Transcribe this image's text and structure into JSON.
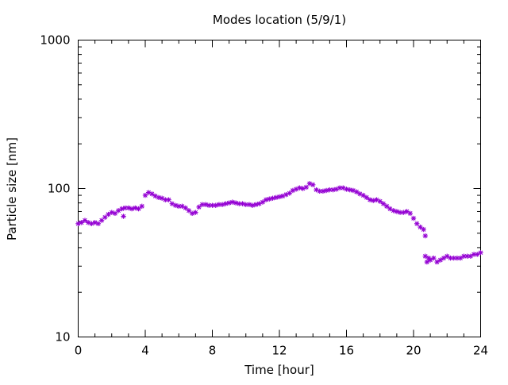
{
  "chart_data": {
    "type": "scatter",
    "title": "Modes location (5/9/1)",
    "xlabel": "Time [hour]",
    "ylabel": "Particle size [nm]",
    "xlim": [
      0,
      24
    ],
    "ylim": [
      10,
      1000
    ],
    "yscale": "log",
    "grid": false,
    "legend": "none",
    "marker": "star",
    "color": "#9400d3",
    "x_ticks": [
      0,
      4,
      8,
      12,
      16,
      20,
      24
    ],
    "x_tick_labels": [
      "0",
      "4",
      "8",
      "12",
      "16",
      "20",
      "24"
    ],
    "y_ticks": [
      10,
      100,
      1000
    ],
    "y_tick_labels": [
      "10",
      "100",
      "1000"
    ],
    "series": [
      {
        "points": [
          [
            0.0,
            58
          ],
          [
            0.2,
            59
          ],
          [
            0.4,
            61
          ],
          [
            0.6,
            59
          ],
          [
            0.8,
            58
          ],
          [
            1.0,
            59
          ],
          [
            1.2,
            58
          ],
          [
            1.4,
            61
          ],
          [
            1.6,
            64
          ],
          [
            1.8,
            67
          ],
          [
            2.0,
            69
          ],
          [
            2.2,
            68
          ],
          [
            2.4,
            71
          ],
          [
            2.6,
            73
          ],
          [
            2.7,
            65
          ],
          [
            2.8,
            74
          ],
          [
            3.0,
            74
          ],
          [
            3.2,
            73
          ],
          [
            3.4,
            74
          ],
          [
            3.6,
            73
          ],
          [
            3.8,
            76
          ],
          [
            4.0,
            90
          ],
          [
            4.2,
            94
          ],
          [
            4.4,
            92
          ],
          [
            4.6,
            89
          ],
          [
            4.8,
            87
          ],
          [
            5.0,
            86
          ],
          [
            5.2,
            84
          ],
          [
            5.4,
            84
          ],
          [
            5.6,
            79
          ],
          [
            5.8,
            77
          ],
          [
            6.0,
            76
          ],
          [
            6.2,
            76
          ],
          [
            6.4,
            74
          ],
          [
            6.6,
            71
          ],
          [
            6.8,
            68
          ],
          [
            7.0,
            69
          ],
          [
            7.2,
            75
          ],
          [
            7.4,
            78
          ],
          [
            7.6,
            78
          ],
          [
            7.8,
            77
          ],
          [
            8.0,
            77
          ],
          [
            8.2,
            77
          ],
          [
            8.4,
            78
          ],
          [
            8.6,
            78
          ],
          [
            8.8,
            79
          ],
          [
            9.0,
            80
          ],
          [
            9.2,
            81
          ],
          [
            9.4,
            80
          ],
          [
            9.6,
            79
          ],
          [
            9.8,
            79
          ],
          [
            10.0,
            78
          ],
          [
            10.2,
            78
          ],
          [
            10.4,
            77
          ],
          [
            10.6,
            78
          ],
          [
            10.8,
            79
          ],
          [
            11.0,
            81
          ],
          [
            11.2,
            84
          ],
          [
            11.4,
            85
          ],
          [
            11.6,
            86
          ],
          [
            11.8,
            87
          ],
          [
            12.0,
            88
          ],
          [
            12.2,
            89
          ],
          [
            12.4,
            91
          ],
          [
            12.6,
            93
          ],
          [
            12.8,
            97
          ],
          [
            13.0,
            99
          ],
          [
            13.2,
            101
          ],
          [
            13.4,
            100
          ],
          [
            13.6,
            102
          ],
          [
            13.8,
            108
          ],
          [
            14.0,
            106
          ],
          [
            14.2,
            98
          ],
          [
            14.4,
            96
          ],
          [
            14.6,
            96
          ],
          [
            14.8,
            97
          ],
          [
            15.0,
            98
          ],
          [
            15.2,
            98
          ],
          [
            15.4,
            99
          ],
          [
            15.6,
            101
          ],
          [
            15.8,
            101
          ],
          [
            16.0,
            99
          ],
          [
            16.2,
            98
          ],
          [
            16.4,
            97
          ],
          [
            16.6,
            95
          ],
          [
            16.8,
            92
          ],
          [
            17.0,
            90
          ],
          [
            17.2,
            87
          ],
          [
            17.4,
            84
          ],
          [
            17.6,
            83
          ],
          [
            17.8,
            84
          ],
          [
            18.0,
            82
          ],
          [
            18.2,
            79
          ],
          [
            18.4,
            76
          ],
          [
            18.6,
            73
          ],
          [
            18.8,
            71
          ],
          [
            19.0,
            70
          ],
          [
            19.2,
            69
          ],
          [
            19.4,
            69
          ],
          [
            19.6,
            70
          ],
          [
            19.8,
            68
          ],
          [
            20.0,
            63
          ],
          [
            20.2,
            58
          ],
          [
            20.4,
            55
          ],
          [
            20.6,
            53
          ],
          [
            20.7,
            48
          ],
          [
            20.7,
            35
          ],
          [
            20.8,
            32
          ],
          [
            20.9,
            34
          ],
          [
            21.0,
            33
          ],
          [
            21.2,
            34
          ],
          [
            21.4,
            32
          ],
          [
            21.6,
            33
          ],
          [
            21.8,
            34
          ],
          [
            22.0,
            35
          ],
          [
            22.2,
            34
          ],
          [
            22.4,
            34
          ],
          [
            22.6,
            34
          ],
          [
            22.8,
            34
          ],
          [
            23.0,
            35
          ],
          [
            23.2,
            35
          ],
          [
            23.4,
            35
          ],
          [
            23.6,
            36
          ],
          [
            23.8,
            36
          ],
          [
            24.0,
            37
          ]
        ]
      }
    ]
  }
}
